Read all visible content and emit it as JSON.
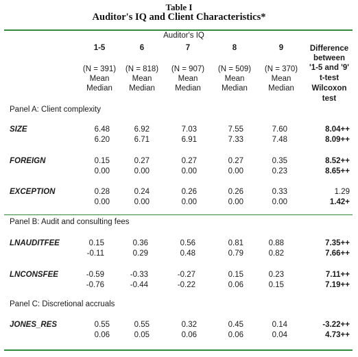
{
  "title": "Table I",
  "subtitle": "Auditor's IQ and Client Characteristics*",
  "group_header": "Auditor's IQ",
  "columns": [
    {
      "label": "1-5",
      "n": "(N = 391)"
    },
    {
      "label": "6",
      "n": "(N = 818)"
    },
    {
      "label": "7",
      "n": "(N = 907)"
    },
    {
      "label": "8",
      "n": "(N = 509)"
    },
    {
      "label": "9",
      "n": "(N = 370)"
    }
  ],
  "stat_labels": {
    "mean": "Mean",
    "median": "Median"
  },
  "diff_header": [
    "Difference",
    "between",
    "'1-5 and '9'",
    "t-test",
    "Wilcoxon",
    "test"
  ],
  "panels": [
    {
      "title": "Panel A: Client complexity",
      "rows": [
        {
          "var": "SIZE",
          "mean": [
            "6.48",
            "6.92",
            "7.03",
            "7.55",
            "7.60"
          ],
          "median": [
            "6.20",
            "6.71",
            "6.91",
            "7.33",
            "7.48"
          ],
          "t": "8.04++",
          "w": "8.09++"
        },
        {
          "var": "FOREIGN",
          "mean": [
            "0.15",
            "0.27",
            "0.27",
            "0.27",
            "0.35"
          ],
          "median": [
            "0.00",
            "0.00",
            "0.00",
            "0.00",
            "0.23"
          ],
          "t": "8.52++",
          "w": "8.65++"
        },
        {
          "var": "EXCEPTION",
          "mean": [
            "0.28",
            "0.24",
            "0.26",
            "0.26",
            "0.33"
          ],
          "median": [
            "0.00",
            "0.00",
            "0.00",
            "0.00",
            "0.00"
          ],
          "t": "1.29",
          "w": "1.42+"
        }
      ]
    },
    {
      "title": "Panel B: Audit and consulting fees",
      "rows": [
        {
          "var": "LNAUDITFEE",
          "mean": [
            "0.15",
            "0.36",
            "0.56",
            "0.81",
            "0.88"
          ],
          "median": [
            "-0.11",
            "0.29",
            "0.48",
            "0.79",
            "0.82"
          ],
          "t": "7.35++",
          "w": "7.66++"
        },
        {
          "var": "LNCONSFEE",
          "mean": [
            "-0.59",
            "-0.33",
            "-0.27",
            "0.15",
            "0.23"
          ],
          "median": [
            "-0.76",
            "-0.44",
            "-0.22",
            "0.06",
            "0.15"
          ],
          "t": "7.11++",
          "w": "7.19++"
        }
      ]
    },
    {
      "title": "Panel C: Discretional accruals",
      "rows": [
        {
          "var": "JONES_RES",
          "mean": [
            "0.55",
            "0.55",
            "0.32",
            "0.45",
            "0.14"
          ],
          "median": [
            "0.06",
            "0.05",
            "0.06",
            "0.06",
            "0.04"
          ],
          "t": "-3.22++",
          "w": "4.73++"
        }
      ]
    }
  ],
  "colors": {
    "rule": "#2e8b3a"
  }
}
